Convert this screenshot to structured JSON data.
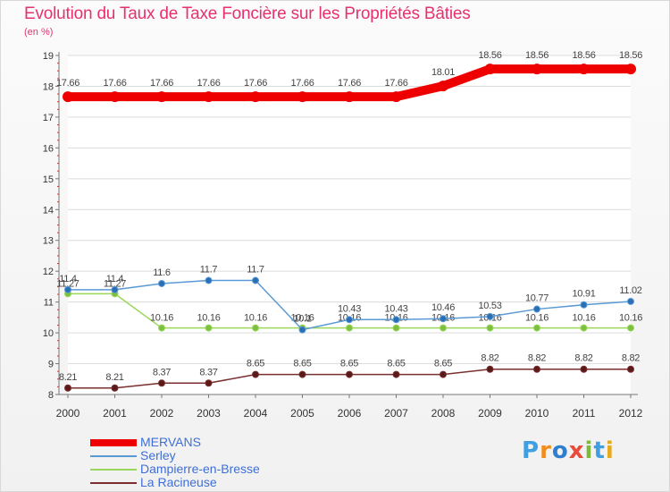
{
  "title": "Evolution du Taux de Taxe Foncière sur les Propriétés Bâties",
  "subtitle": "(en %)",
  "logo": {
    "text": "Proxiti",
    "colors": [
      "#3f9fe0",
      "#f28c1c",
      "#2e7fd0",
      "#e84a3c",
      "#7fb83a",
      "#3f9fe0",
      "#e8a91c"
    ]
  },
  "chart_data": {
    "type": "line",
    "title": "Evolution du Taux de Taxe Foncière sur les Propriétés Bâties",
    "ylabel": "(en %)",
    "xlabel": "",
    "x": [
      "2000",
      "2001",
      "2002",
      "2003",
      "2004",
      "2005",
      "2006",
      "2007",
      "2008",
      "2009",
      "2010",
      "2011",
      "2012"
    ],
    "ylim": [
      8,
      19
    ],
    "yticks": [
      "8",
      "9",
      "10",
      "11",
      "12",
      "13",
      "14",
      "15",
      "16",
      "17",
      "18",
      "19"
    ],
    "series": [
      {
        "name": "MERVANS",
        "color": "#ee0000",
        "values": [
          17.66,
          17.66,
          17.66,
          17.66,
          17.66,
          17.66,
          17.66,
          17.66,
          18.01,
          18.56,
          18.56,
          18.56,
          18.56
        ],
        "labels": [
          "17.66",
          "17.66",
          "17.66",
          "17.66",
          "17.66",
          "17.66",
          "17.66",
          "17.66",
          "18.01",
          "18.56",
          "18.56",
          "18.56",
          "18.56"
        ]
      },
      {
        "name": "Serley",
        "color": "#5a9ad4",
        "values": [
          11.4,
          11.4,
          11.6,
          11.7,
          11.7,
          10.1,
          10.43,
          10.43,
          10.46,
          10.53,
          10.77,
          10.91,
          11.02
        ],
        "labels": [
          "11.4",
          "11.4",
          "11.6",
          "11.7",
          "11.7",
          "10.1",
          "10.43",
          "10.43",
          "10.46",
          "10.53",
          "10.77",
          "10.91",
          "11.02"
        ]
      },
      {
        "name": "Dampierre-en-Bresse",
        "color": "#9ad65a",
        "values": [
          11.27,
          11.27,
          10.16,
          10.16,
          10.16,
          10.16,
          10.16,
          10.16,
          10.16,
          10.16,
          10.16,
          10.16,
          10.16
        ],
        "labels": [
          "11.27",
          "11.27",
          "10.16",
          "10.16",
          "10.16",
          "10.16",
          "10.16",
          "10.16",
          "10.16",
          "10.16",
          "10.16",
          "10.16",
          "10.16"
        ]
      },
      {
        "name": "La Racineuse",
        "color": "#7a2e2e",
        "values": [
          8.21,
          8.21,
          8.37,
          8.37,
          8.65,
          8.65,
          8.65,
          8.65,
          8.65,
          8.82,
          8.82,
          8.82,
          8.82
        ],
        "labels": [
          "8.21",
          "8.21",
          "8.37",
          "8.37",
          "8.65",
          "8.65",
          "8.65",
          "8.65",
          "8.65",
          "8.82",
          "8.82",
          "8.82",
          "8.82"
        ]
      }
    ]
  }
}
